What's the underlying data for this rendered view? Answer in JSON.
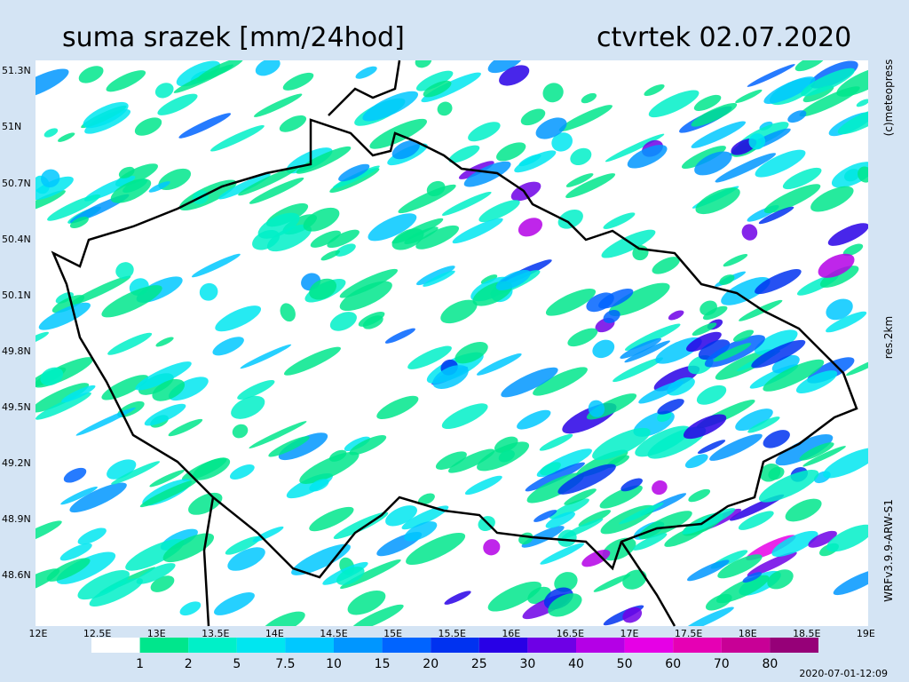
{
  "header": {
    "title": "suma srazek [mm/24hod]",
    "date": "ctvrtek 02.07.2020"
  },
  "lat_labels": [
    "51.3N",
    "51N",
    "50.7N",
    "50.4N",
    "50.1N",
    "49.8N",
    "49.5N",
    "49.2N",
    "48.9N",
    "48.6N"
  ],
  "lon_labels": [
    "12E",
    "12.5E",
    "13E",
    "13.5E",
    "14E",
    "14.5E",
    "15E",
    "15.5E",
    "16E",
    "16.5E",
    "17E",
    "17.5E",
    "18E",
    "18.5E",
    "19E"
  ],
  "legend": {
    "colors": [
      "#ffffff",
      "#00e68c",
      "#00f0c8",
      "#00e6f0",
      "#00c8ff",
      "#0096ff",
      "#0064ff",
      "#0032f0",
      "#2800e6",
      "#6e00e6",
      "#b400e6",
      "#e600e6",
      "#e600b4",
      "#c80096",
      "#960078"
    ],
    "labels": [
      "1",
      "2",
      "5",
      "7.5",
      "10",
      "15",
      "20",
      "25",
      "30",
      "40",
      "50",
      "60",
      "70",
      "80"
    ]
  },
  "credits": {
    "copyright": "(c)meteopress",
    "resolution": "res.2km",
    "model": "WRFv3.9.9-ARW-S1",
    "run": "2020-07-01-12:09"
  }
}
